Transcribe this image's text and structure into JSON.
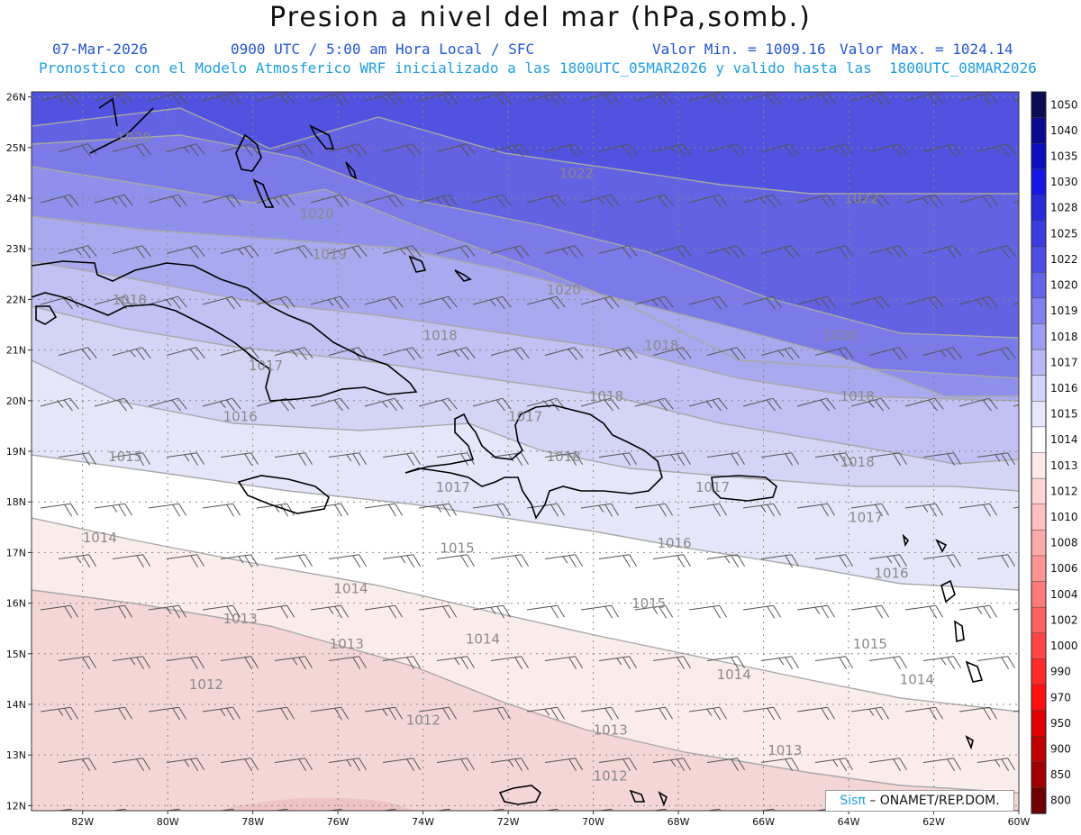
{
  "header": {
    "title": "Presion a nivel del mar (hPa,somb.)",
    "date": "07-Mar-2026",
    "time": "0900 UTC / 5:00 am Hora Local / SFC",
    "min": "Valor Min. = 1009.16",
    "max": "Valor Max. = 1024.14",
    "forecast": "Pronostico con el Modelo Atmosferico WRF inicializado a las 1800UTC_05MAR2026 y valido hasta las  1800UTC_08MAR2026"
  },
  "lat_labels": [
    "26N",
    "25N",
    "24N",
    "23N",
    "22N",
    "21N",
    "20N",
    "19N",
    "18N",
    "17N",
    "16N",
    "15N",
    "14N",
    "13N",
    "12N"
  ],
  "lon_labels": [
    "82W",
    "80W",
    "78W",
    "76W",
    "74W",
    "72W",
    "70W",
    "68W",
    "66W",
    "64W",
    "62W",
    "60W"
  ],
  "legend": {
    "levels": [
      "1050",
      "1040",
      "1035",
      "1030",
      "1028",
      "1025",
      "1022",
      "1020",
      "1019",
      "1018",
      "1017",
      "1016",
      "1015",
      "1014",
      "1013",
      "1012",
      "1010",
      "1008",
      "1006",
      "1004",
      "1002",
      "1000",
      "990",
      "970",
      "950",
      "900",
      "850",
      "800"
    ],
    "colors": [
      "#0c0c55",
      "#0a0a8e",
      "#0d0dc0",
      "#1616e6",
      "#2a2ad8",
      "#3c3ce0",
      "#4d4de6",
      "#6464ea",
      "#8080ee",
      "#9c9cf2",
      "#b8b8f6",
      "#d2d2fa",
      "#e6e6fc",
      "#ffffff",
      "#ffe8e8",
      "#ffd4d4",
      "#ffc0c0",
      "#ffaaaa",
      "#ff9494",
      "#ff7a7a",
      "#ff6060",
      "#ff4545",
      "#ff2a2a",
      "#ff1010",
      "#e00000",
      "#c00000",
      "#a00000",
      "#700000"
    ]
  },
  "contour_labels": [
    {
      "text": "1020",
      "lon": -81.2,
      "lat": 25.1
    },
    {
      "text": "1022",
      "lon": -70.8,
      "lat": 24.4
    },
    {
      "text": "1022",
      "lon": -64.1,
      "lat": 23.9
    },
    {
      "text": "1020",
      "lon": -76.9,
      "lat": 23.6
    },
    {
      "text": "1019",
      "lon": -76.6,
      "lat": 22.8
    },
    {
      "text": "1020",
      "lon": -71.1,
      "lat": 22.1
    },
    {
      "text": "1018",
      "lon": -81.3,
      "lat": 21.9
    },
    {
      "text": "1018",
      "lon": -74.0,
      "lat": 21.2
    },
    {
      "text": "1018",
      "lon": -68.8,
      "lat": 21.0
    },
    {
      "text": "1020",
      "lon": -64.6,
      "lat": 21.2
    },
    {
      "text": "1017",
      "lon": -78.1,
      "lat": 20.6
    },
    {
      "text": "1018",
      "lon": -70.1,
      "lat": 20.0
    },
    {
      "text": "1018",
      "lon": -64.2,
      "lat": 20.0
    },
    {
      "text": "1017",
      "lon": -72.0,
      "lat": 19.6
    },
    {
      "text": "1016",
      "lon": -78.7,
      "lat": 19.6
    },
    {
      "text": "1015",
      "lon": -81.4,
      "lat": 18.8
    },
    {
      "text": "1018",
      "lon": -71.1,
      "lat": 18.8
    },
    {
      "text": "1018",
      "lon": -64.2,
      "lat": 18.7
    },
    {
      "text": "1017",
      "lon": -73.7,
      "lat": 18.2
    },
    {
      "text": "1017",
      "lon": -67.6,
      "lat": 18.2
    },
    {
      "text": "1017",
      "lon": -64.0,
      "lat": 17.6
    },
    {
      "text": "1014",
      "lon": -82.0,
      "lat": 17.2
    },
    {
      "text": "1016",
      "lon": -68.5,
      "lat": 17.1
    },
    {
      "text": "1015",
      "lon": -73.6,
      "lat": 17.0
    },
    {
      "text": "1016",
      "lon": -63.4,
      "lat": 16.5
    },
    {
      "text": "1014",
      "lon": -76.1,
      "lat": 16.2
    },
    {
      "text": "1015",
      "lon": -69.1,
      "lat": 15.9
    },
    {
      "text": "1013",
      "lon": -78.7,
      "lat": 15.6
    },
    {
      "text": "1014",
      "lon": -73.0,
      "lat": 15.2
    },
    {
      "text": "1013",
      "lon": -76.2,
      "lat": 15.1
    },
    {
      "text": "1015",
      "lon": -63.9,
      "lat": 15.1
    },
    {
      "text": "1014",
      "lon": -67.1,
      "lat": 14.5
    },
    {
      "text": "1014",
      "lon": -62.8,
      "lat": 14.4
    },
    {
      "text": "1012",
      "lon": -79.5,
      "lat": 14.3
    },
    {
      "text": "1012",
      "lon": -74.4,
      "lat": 13.6
    },
    {
      "text": "1013",
      "lon": -70.0,
      "lat": 13.4
    },
    {
      "text": "1013",
      "lon": -65.9,
      "lat": 13.0
    },
    {
      "text": "1012",
      "lon": -70.0,
      "lat": 12.5
    }
  ],
  "credit": {
    "brand": "Sisπ",
    "text": "– ONAMET/REP.DOM."
  },
  "band_colors": [
    "#f6dede",
    "#fbecec",
    "#ffffff",
    "#e6e6fb",
    "#d4d4f7",
    "#c1c1f4",
    "#a9a9ef",
    "#8f8fec",
    "#7a7ae9",
    "#6262e3",
    "#5252e0"
  ]
}
